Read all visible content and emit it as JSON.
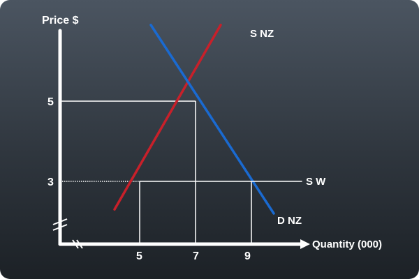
{
  "chart_data": {
    "type": "line",
    "ylabel": "Price $",
    "xlabel": "Quantity (000)",
    "x_ticks": [
      "5",
      "7",
      "9"
    ],
    "y_ticks": [
      "5",
      "3"
    ],
    "axis_breaks": true,
    "grid": false,
    "series": [
      {
        "name": "S NZ",
        "color": "#c8202a",
        "points": [
          [
            4.1,
            2.3
          ],
          [
            7.9,
            6.9
          ]
        ]
      },
      {
        "name": "D NZ",
        "color": "#1a6ad1",
        "points": [
          [
            5.4,
            6.9
          ],
          [
            9.8,
            2.2
          ]
        ]
      },
      {
        "name": "S W",
        "color": "#ffffff",
        "points": [
          [
            3.0,
            3.0
          ],
          [
            10.8,
            3.0
          ]
        ]
      }
    ],
    "guides": {
      "equilibrium": {
        "x": 7,
        "y": 5
      },
      "world_price": 3,
      "quantities_at_world_price": [
        5,
        9
      ]
    }
  }
}
